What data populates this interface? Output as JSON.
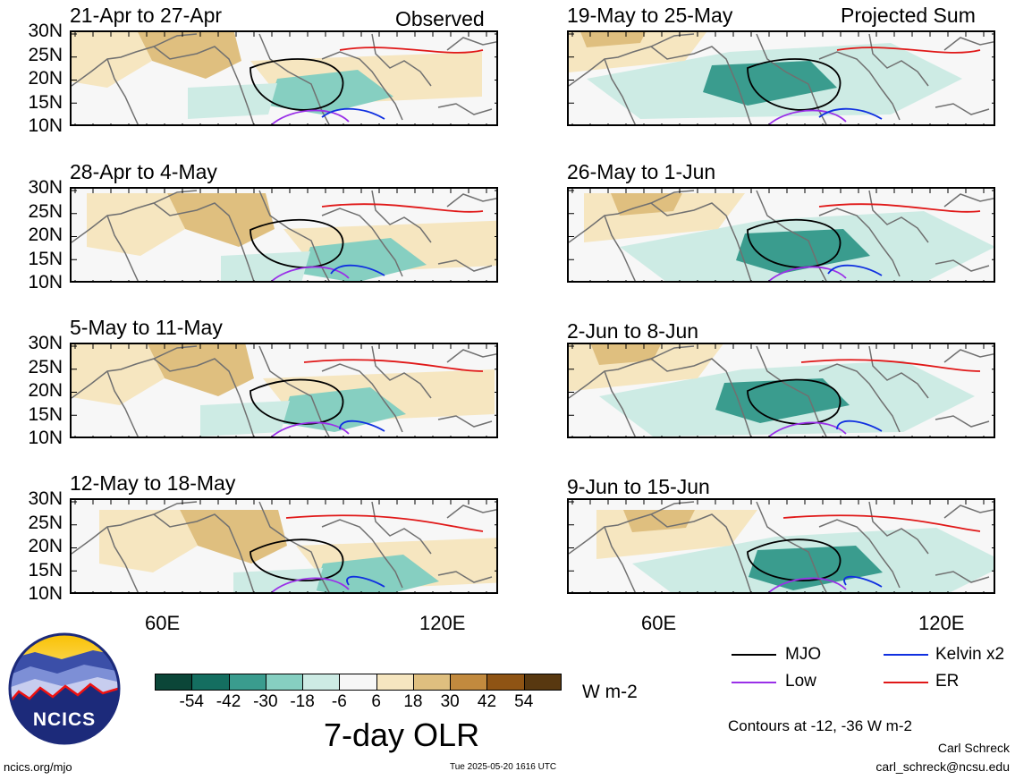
{
  "panels_left": [
    {
      "title": "21-Apr to 27-Apr",
      "tag": "Observed"
    },
    {
      "title": "28-Apr to 4-May",
      "tag": ""
    },
    {
      "title": "5-May to 11-May",
      "tag": ""
    },
    {
      "title": "12-May to 18-May",
      "tag": ""
    }
  ],
  "panels_right": [
    {
      "title": "19-May to 25-May",
      "tag": "Projected Sum"
    },
    {
      "title": "26-May to 1-Jun",
      "tag": ""
    },
    {
      "title": "2-Jun to 8-Jun",
      "tag": ""
    },
    {
      "title": "9-Jun to 15-Jun",
      "tag": ""
    }
  ],
  "y_ticks": [
    "30N",
    "25N",
    "20N",
    "15N",
    "10N"
  ],
  "x_ticks": [
    "60E",
    "120E"
  ],
  "colorbar": {
    "labels": [
      "-54",
      "-42",
      "-30",
      "-18",
      "-6",
      "6",
      "18",
      "30",
      "42",
      "54"
    ],
    "colors": [
      "#0b4638",
      "#146e60",
      "#3a9c8e",
      "#86cfc1",
      "#cdebe4",
      "#f7f7f7",
      "#f6e6c0",
      "#dfbf7f",
      "#c28a3e",
      "#8f5414",
      "#583810"
    ],
    "units": "W m-2",
    "title": "7-day OLR"
  },
  "legend": {
    "mjo": {
      "label": "MJO",
      "color": "#000000"
    },
    "kelvin": {
      "label": "Kelvin x2",
      "color": "#1030e0"
    },
    "low": {
      "label": "Low",
      "color": "#9a30e8"
    },
    "er": {
      "label": "ER",
      "color": "#e01818"
    }
  },
  "contours_note": "Contours at -12, -36 W m-2",
  "author": "Carl Schreck",
  "email": "carl_schreck@ncsu.edu",
  "site": "ncics.org/mjo",
  "timestamp": "Tue 2025-05-20 1616 UTC",
  "logo_text": "NCICS"
}
